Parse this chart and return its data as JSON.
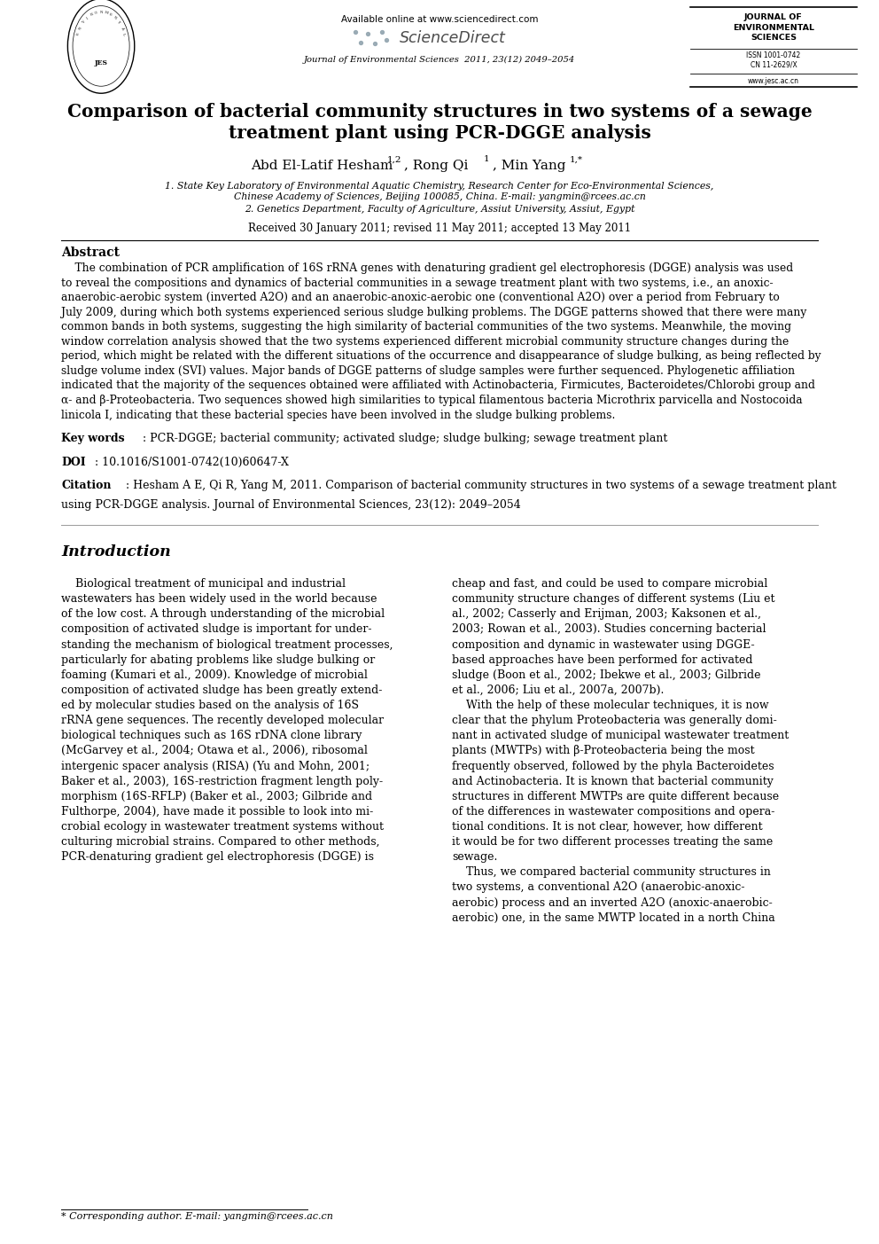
{
  "page_width": 9.92,
  "page_height": 14.03,
  "bg_color": "#ffffff",
  "title_line1": "Comparison of bacterial community structures in two systems of a sewage",
  "title_line2": "treatment plant using PCR-DGGE analysis",
  "author_name": "Abd El-Latif Hesham",
  "author_sup1": "1,2",
  "author_mid": ", Rong Qi",
  "author_sup2": "1",
  "author_end": ", Min Yang",
  "author_sup3": "1,*",
  "affil1_line1": "1. State Key Laboratory of Environmental Aquatic Chemistry, Research Center for Eco-Environmental Sciences,",
  "affil1_line2": "Chinese Academy of Sciences, Beijing 100085, China. E-mail: yangmin@rcees.ac.cn",
  "affil2": "2. Genetics Department, Faculty of Agriculture, Assiut University, Assiut, Egypt",
  "received": "Received 30 January 2011; revised 11 May 2011; accepted 13 May 2011",
  "available_online": "Available online at www.sciencedirect.com",
  "sciencedirect": "ScienceDirect",
  "journal_info": "Journal of Environmental Sciences  2011, 23(12) 2049–2054",
  "journal_box_line1": "JOURNAL OF",
  "journal_box_line2": "ENVIRONMENTAL",
  "journal_box_line3": "SCIENCES",
  "journal_box_issn1": "ISSN 1001-0742",
  "journal_box_issn2": "CN 11-2629/X",
  "journal_box_url": "www.jesc.ac.cn",
  "abstract_title": "Abstract",
  "abstract_lines": [
    "    The combination of PCR amplification of 16S rRNA genes with denaturing gradient gel electrophoresis (DGGE) analysis was used",
    "to reveal the compositions and dynamics of bacterial communities in a sewage treatment plant with two systems, i.e., an anoxic-",
    "anaerobic-aerobic system (inverted A2O) and an anaerobic-anoxic-aerobic one (conventional A2O) over a period from February to",
    "July 2009, during which both systems experienced serious sludge bulking problems. The DGGE patterns showed that there were many",
    "common bands in both systems, suggesting the high similarity of bacterial communities of the two systems. Meanwhile, the moving",
    "window correlation analysis showed that the two systems experienced different microbial community structure changes during the",
    "period, which might be related with the different situations of the occurrence and disappearance of sludge bulking, as being reflected by",
    "sludge volume index (SVI) values. Major bands of DGGE patterns of sludge samples were further sequenced. Phylogenetic affiliation",
    "indicated that the majority of the sequences obtained were affiliated with Actinobacteria, Firmicutes, Bacteroidetes/Chlorobi group and",
    "α- and β-Proteobacteria. Two sequences showed high similarities to typical filamentous bacteria Microthrix parvicella and Nostocoida",
    "linicola I, indicating that these bacterial species have been involved in the sludge bulking problems."
  ],
  "keywords_label": "Key words",
  "keywords_text": ": PCR-DGGE; bacterial community; activated sludge; sludge bulking; sewage treatment plant",
  "doi_label": "DOI",
  "doi_text": ": 10.1016/S1001-0742(10)60647-X",
  "citation_label": "Citation",
  "citation_line1": ": Hesham A E, Qi R, Yang M, 2011. Comparison of bacterial community structures in two systems of a sewage treatment plant",
  "citation_line2": "using PCR-DGGE analysis. Journal of Environmental Sciences, 23(12): 2049–2054",
  "intro_title": "Introduction",
  "col1_lines": [
    "    Biological treatment of municipal and industrial",
    "wastewaters has been widely used in the world because",
    "of the low cost. A through understanding of the microbial",
    "composition of activated sludge is important for under-",
    "standing the mechanism of biological treatment processes,",
    "particularly for abating problems like sludge bulking or",
    "foaming (Kumari et al., 2009). Knowledge of microbial",
    "composition of activated sludge has been greatly extend-",
    "ed by molecular studies based on the analysis of 16S",
    "rRNA gene sequences. The recently developed molecular",
    "biological techniques such as 16S rDNA clone library",
    "(McGarvey et al., 2004; Otawa et al., 2006), ribosomal",
    "intergenic spacer analysis (RISA) (Yu and Mohn, 2001;",
    "Baker et al., 2003), 16S-restriction fragment length poly-",
    "morphism (16S-RFLP) (Baker et al., 2003; Gilbride and",
    "Fulthorpe, 2004), have made it possible to look into mi-",
    "crobial ecology in wastewater treatment systems without",
    "culturing microbial strains. Compared to other methods,",
    "PCR-denaturing gradient gel electrophoresis (DGGE) is"
  ],
  "col2_lines": [
    "cheap and fast, and could be used to compare microbial",
    "community structure changes of different systems (Liu et",
    "al., 2002; Casserly and Erijman, 2003; Kaksonen et al.,",
    "2003; Rowan et al., 2003). Studies concerning bacterial",
    "composition and dynamic in wastewater using DGGE-",
    "based approaches have been performed for activated",
    "sludge (Boon et al., 2002; Ibekwe et al., 2003; Gilbride",
    "et al., 2006; Liu et al., 2007a, 2007b).",
    "    With the help of these molecular techniques, it is now",
    "clear that the phylum Proteobacteria was generally domi-",
    "nant in activated sludge of municipal wastewater treatment",
    "plants (MWTPs) with β-Proteobacteria being the most",
    "frequently observed, followed by the phyla Bacteroidetes",
    "and Actinobacteria. It is known that bacterial community",
    "structures in different MWTPs are quite different because",
    "of the differences in wastewater compositions and opera-",
    "tional conditions. It is not clear, however, how different",
    "it would be for two different processes treating the same",
    "sewage.",
    "    Thus, we compared bacterial community structures in",
    "two systems, a conventional A2O (anaerobic-anoxic-",
    "aerobic) process and an inverted A2O (anoxic-anaerobic-",
    "aerobic) one, in the same MWTP located in a north China"
  ],
  "footnote": "* Corresponding author. E-mail: yangmin@rcees.ac.cn"
}
